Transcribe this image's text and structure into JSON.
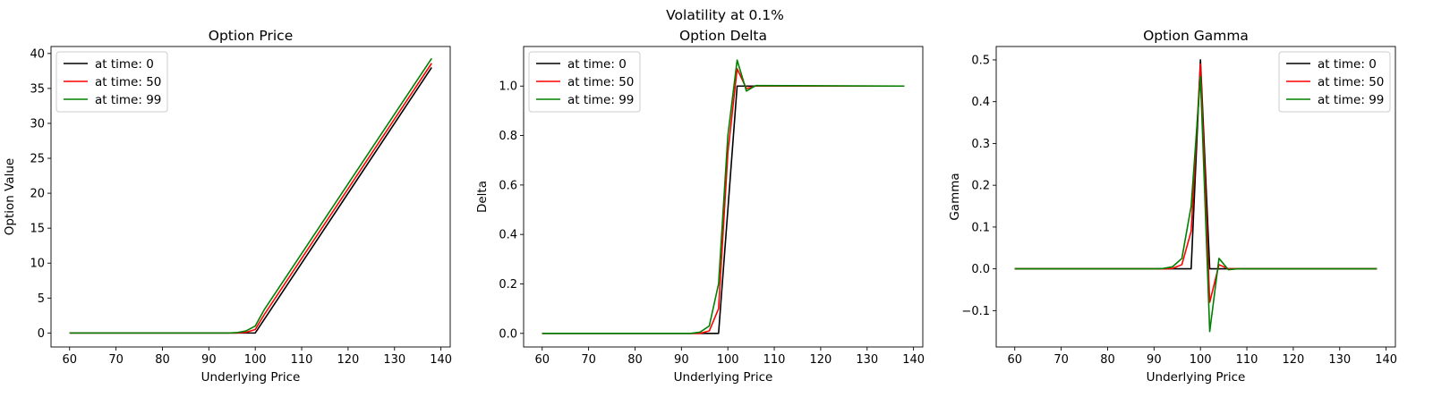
{
  "figure": {
    "suptitle": "Volatility at 0.1%"
  },
  "chart_data": [
    {
      "type": "line",
      "title": "Option Price",
      "xlabel": "Underlying Price",
      "ylabel": "Option Value",
      "xlim": [
        56,
        142
      ],
      "ylim": [
        -2,
        41
      ],
      "xticks": [
        60,
        70,
        80,
        90,
        100,
        110,
        120,
        130,
        140
      ],
      "yticks": [
        0,
        5,
        10,
        15,
        20,
        25,
        30,
        35,
        40
      ],
      "legend_position": "upper left",
      "series": [
        {
          "name": "at time: 0",
          "color": "#000000",
          "x": [
            60,
            96,
            100,
            102,
            138
          ],
          "y": [
            0,
            0,
            0,
            2,
            38
          ]
        },
        {
          "name": "at time: 50",
          "color": "#ff0000",
          "x": [
            60,
            96,
            98,
            100,
            102,
            138
          ],
          "y": [
            0,
            0,
            0.1,
            0.5,
            2.7,
            38.6
          ]
        },
        {
          "name": "at time: 99",
          "color": "#008000",
          "x": [
            60,
            94,
            96,
            98,
            100,
            102,
            138
          ],
          "y": [
            0,
            0,
            0.05,
            0.3,
            1.0,
            3.4,
            39.3
          ]
        }
      ]
    },
    {
      "type": "line",
      "title": "Option Delta",
      "xlabel": "Underlying Price",
      "ylabel": "Delta",
      "xlim": [
        56,
        142
      ],
      "ylim": [
        -0.055,
        1.16
      ],
      "xticks": [
        60,
        70,
        80,
        90,
        100,
        110,
        120,
        130,
        140
      ],
      "yticks": [
        0.0,
        0.2,
        0.4,
        0.6,
        0.8,
        1.0
      ],
      "legend_position": "upper left",
      "series": [
        {
          "name": "at time: 0",
          "color": "#000000",
          "x": [
            60,
            98,
            100,
            102,
            104,
            106,
            138
          ],
          "y": [
            0,
            0,
            0.5,
            1.0,
            1.0,
            1.0,
            1.0
          ]
        },
        {
          "name": "at time: 50",
          "color": "#ff0000",
          "x": [
            60,
            94,
            96,
            98,
            100,
            102,
            104,
            106,
            138
          ],
          "y": [
            0,
            0,
            0.01,
            0.1,
            0.73,
            1.07,
            0.99,
            1.0,
            1.0
          ]
        },
        {
          "name": "at time: 99",
          "color": "#008000",
          "x": [
            60,
            92,
            94,
            96,
            98,
            100,
            102,
            104,
            106,
            138
          ],
          "y": [
            0,
            0,
            0.005,
            0.03,
            0.2,
            0.8,
            1.105,
            0.98,
            1.002,
            1.0
          ]
        }
      ]
    },
    {
      "type": "line",
      "title": "Option Gamma",
      "xlabel": "Underlying Price",
      "ylabel": "Gamma",
      "xlim": [
        56,
        142
      ],
      "ylim": [
        -0.187,
        0.532
      ],
      "xticks": [
        60,
        70,
        80,
        90,
        100,
        110,
        120,
        130,
        140
      ],
      "yticks": [
        -0.1,
        0.0,
        0.1,
        0.2,
        0.3,
        0.4,
        0.5
      ],
      "ytick_labels": [
        "−0.1",
        "0.0",
        "0.1",
        "0.2",
        "0.3",
        "0.4",
        "0.5"
      ],
      "legend_position": "upper right",
      "series": [
        {
          "name": "at time: 0",
          "color": "#000000",
          "x": [
            60,
            98,
            100,
            102,
            104,
            138
          ],
          "y": [
            0,
            0,
            0.5,
            0,
            0,
            0
          ]
        },
        {
          "name": "at time: 50",
          "color": "#ff0000",
          "x": [
            60,
            92,
            94,
            96,
            98,
            100,
            102,
            104,
            106,
            138
          ],
          "y": [
            0,
            0,
            0.001,
            0.01,
            0.09,
            0.49,
            -0.08,
            0.01,
            0,
            0
          ]
        },
        {
          "name": "at time: 99",
          "color": "#008000",
          "x": [
            60,
            90,
            92,
            94,
            96,
            98,
            100,
            102,
            104,
            106,
            108,
            138
          ],
          "y": [
            0,
            0,
            0.001,
            0.005,
            0.025,
            0.15,
            0.46,
            -0.15,
            0.025,
            -0.002,
            0,
            0
          ]
        }
      ]
    }
  ]
}
